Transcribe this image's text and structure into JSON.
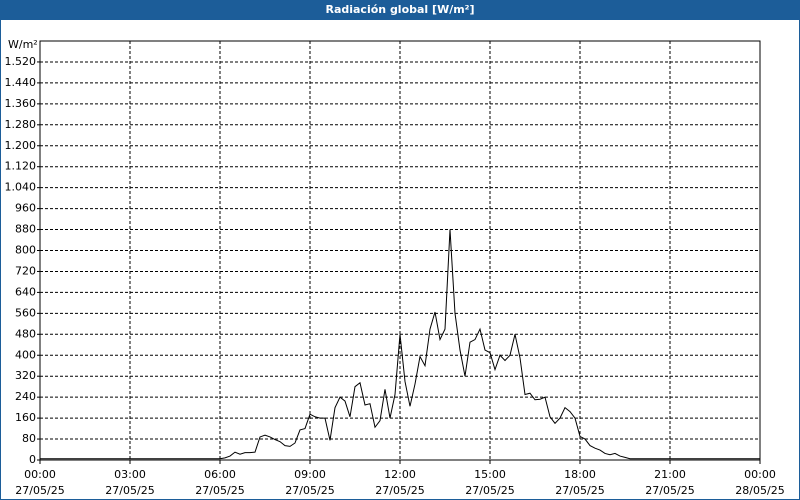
{
  "chart_data": {
    "type": "line",
    "title": "Radiación global [W/m²]",
    "y_label": "W/m²",
    "x": [
      0,
      360,
      370,
      380,
      390,
      400,
      410,
      420,
      430,
      440,
      450,
      460,
      470,
      480,
      490,
      500,
      510,
      520,
      530,
      540,
      550,
      560,
      570,
      580,
      590,
      600,
      610,
      620,
      630,
      640,
      650,
      660,
      670,
      680,
      690,
      700,
      710,
      720,
      730,
      740,
      750,
      760,
      770,
      780,
      790,
      800,
      810,
      820,
      830,
      840,
      850,
      860,
      870,
      880,
      890,
      900,
      910,
      920,
      930,
      940,
      950,
      960,
      970,
      980,
      990,
      1000,
      1010,
      1020,
      1030,
      1040,
      1050,
      1060,
      1070,
      1080,
      1090,
      1100,
      1110,
      1120,
      1130,
      1140,
      1150,
      1160,
      1170,
      1180,
      1440
    ],
    "series": [
      {
        "name": "Radiación global",
        "color": "#000000",
        "values": [
          5,
          5,
          8,
          15,
          30,
          22,
          28,
          28,
          30,
          88,
          95,
          88,
          78,
          70,
          55,
          52,
          65,
          115,
          120,
          175,
          165,
          160,
          160,
          75,
          200,
          240,
          225,
          165,
          280,
          295,
          210,
          215,
          125,
          150,
          270,
          160,
          250,
          480,
          300,
          205,
          290,
          395,
          360,
          500,
          565,
          460,
          500,
          880,
          560,
          420,
          320,
          450,
          460,
          500,
          420,
          410,
          345,
          400,
          380,
          400,
          480,
          390,
          250,
          255,
          230,
          232,
          240,
          165,
          140,
          160,
          200,
          185,
          160,
          90,
          80,
          55,
          45,
          38,
          25,
          20,
          25,
          15,
          10,
          5,
          5
        ]
      }
    ],
    "xlim": [
      0,
      1440
    ],
    "xticks": [
      {
        "value": 0,
        "label": "00:00"
      },
      {
        "value": 180,
        "label": "03:00"
      },
      {
        "value": 360,
        "label": "06:00"
      },
      {
        "value": 540,
        "label": "09:00"
      },
      {
        "value": 720,
        "label": "12:00"
      },
      {
        "value": 900,
        "label": "15:00"
      },
      {
        "value": 1080,
        "label": "18:00"
      },
      {
        "value": 1260,
        "label": "21:00"
      },
      {
        "value": 1440,
        "label": "00:00"
      }
    ],
    "xtick_dates": [
      "27/05/25",
      "27/05/25",
      "27/05/25",
      "27/05/25",
      "27/05/25",
      "27/05/25",
      "27/05/25",
      "27/05/25",
      "28/05/25"
    ],
    "ylim": [
      0,
      1600
    ],
    "yticks": [
      0,
      80,
      160,
      240,
      320,
      400,
      480,
      560,
      640,
      720,
      800,
      880,
      960,
      {
        "value": 1040,
        "label": "1.040"
      },
      {
        "value": 1120,
        "label": "1.120"
      },
      {
        "value": 1200,
        "label": "1.200"
      },
      {
        "value": 1280,
        "label": "1.280"
      },
      {
        "value": 1360,
        "label": "1.360"
      },
      {
        "value": 1440,
        "label": "1.440"
      },
      {
        "value": 1520,
        "label": "1.520"
      }
    ],
    "grid": true
  }
}
